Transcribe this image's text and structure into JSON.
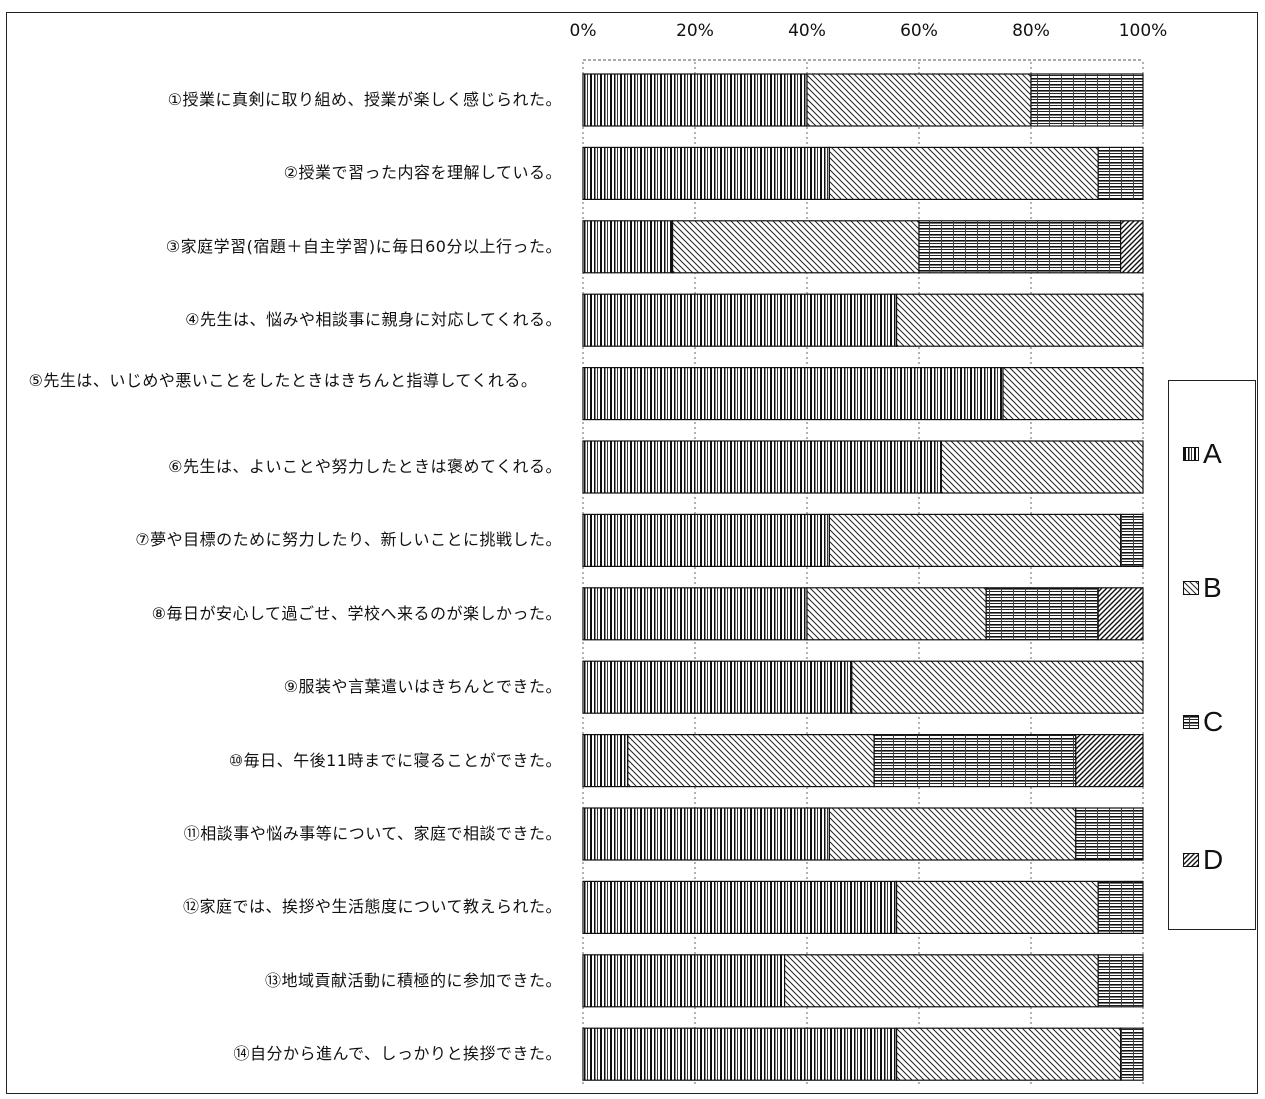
{
  "chart_data": {
    "type": "bar",
    "orientation": "horizontal",
    "stacked": true,
    "categories": [
      "①授業に真剣に取り組め、授業が楽しく感じられた。",
      "②授業で習った内容を理解している。",
      "③家庭学習(宿題＋自主学習)に毎日60分以上行った。",
      "④先生は、悩みや相談事に親身に対応してくれる。",
      "⑤先生は、いじめや悪いことをしたときはきちんと指導してくれる。",
      "⑥先生は、よいことや努力したときは褒めてくれる。",
      "⑦夢や目標のために努力したり、新しいことに挑戦した。",
      "⑧毎日が安心して過ごせ、学校へ来るのが楽しかった。",
      "⑨服装や言葉遣いはきちんとできた。",
      "⑩毎日、午後11時までに寝ることができた。",
      "⑪相談事や悩み事等について、家庭で相談できた。",
      "⑫家庭では、挨拶や生活態度について教えられた。",
      "⑬地域貢献活動に積極的に参加できた。",
      "⑭自分から進んで、しっかりと挨拶できた。"
    ],
    "series": [
      {
        "name": "A",
        "values": [
          40,
          44,
          16,
          56,
          75,
          64,
          44,
          40,
          48,
          8,
          44,
          56,
          36,
          56
        ]
      },
      {
        "name": "B",
        "values": [
          40,
          48,
          44,
          44,
          25,
          36,
          52,
          32,
          52,
          44,
          44,
          36,
          56,
          40
        ]
      },
      {
        "name": "C",
        "values": [
          20,
          8,
          36,
          0,
          0,
          0,
          4,
          20,
          0,
          36,
          12,
          8,
          8,
          4
        ]
      },
      {
        "name": "D",
        "values": [
          0,
          0,
          4,
          0,
          0,
          0,
          0,
          8,
          0,
          12,
          0,
          0,
          0,
          0
        ]
      }
    ],
    "xlim": [
      0,
      100
    ],
    "x_ticks": [
      "0%",
      "20%",
      "40%",
      "60%",
      "80%",
      "100%"
    ],
    "legend": "right",
    "grid": true
  }
}
